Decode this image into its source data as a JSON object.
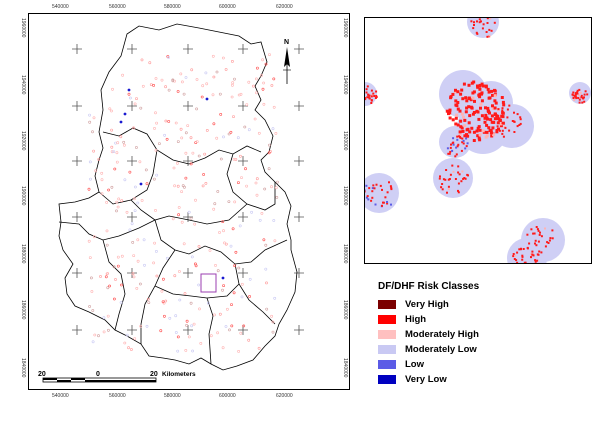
{
  "main_map": {
    "x_ticks": [
      "540000",
      "560000",
      "580000",
      "600000",
      "620000"
    ],
    "y_ticks": [
      "1960000",
      "1940000",
      "1920000",
      "1900000",
      "1880000",
      "1860000",
      "1840000"
    ],
    "north_label": "N"
  },
  "scalebar": {
    "left_label": "20",
    "mid_label": "0",
    "right_label": "20",
    "unit": "Kilometers"
  },
  "legend": {
    "title": "DF/DHF Risk Classes",
    "items": [
      {
        "label": "Very High",
        "color": "#7b0000"
      },
      {
        "label": "High",
        "color": "#ff0000"
      },
      {
        "label": "Moderately High",
        "color": "#ffc0c0"
      },
      {
        "label": "Moderately Low",
        "color": "#c9c9f3"
      },
      {
        "label": "Low",
        "color": "#5b5be6"
      },
      {
        "label": "Very Low",
        "color": "#0000c0"
      }
    ]
  }
}
